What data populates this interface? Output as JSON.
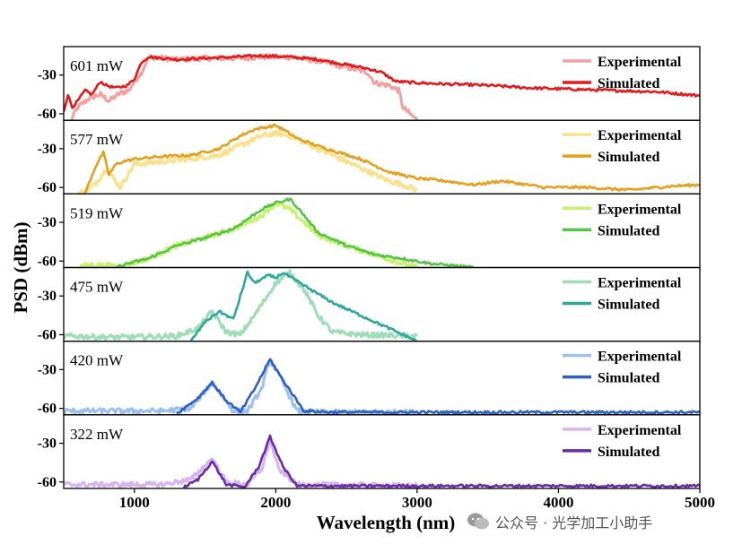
{
  "chart_data": {
    "type": "line",
    "layout": "stacked-panels",
    "xlabel": "Wavelength (nm)",
    "ylabel": "PSD (dBm)",
    "xlim": [
      500,
      5000
    ],
    "xticks": [
      1000,
      2000,
      3000,
      4000,
      5000
    ],
    "ylim": [
      -65,
      -8
    ],
    "yticks": [
      -30,
      -60
    ],
    "legend_labels": [
      "Experimental",
      "Simulated"
    ],
    "legend_position": "top-right",
    "panels": [
      {
        "label": "601 mW",
        "colors": {
          "experimental": "#f2a0a0",
          "simulated": "#e31a1c"
        },
        "series": [
          {
            "name": "Experimental",
            "x": [
              550,
              600,
              680,
              760,
              820,
              900,
              960,
              1000,
              1050,
              1100,
              1300,
              1500,
              1700,
              1900,
              2100,
              2300,
              2500,
              2650,
              2700,
              2800,
              2870,
              2900,
              3000
            ],
            "y": [
              -65,
              -55,
              -48,
              -45,
              -50,
              -44,
              -42,
              -35,
              -28,
              -16,
              -18,
              -17,
              -17,
              -16,
              -16,
              -19,
              -24,
              -28,
              -36,
              -38,
              -42,
              -55,
              -65
            ]
          },
          {
            "name": "Simulated",
            "x": [
              500,
              530,
              560,
              600,
              650,
              700,
              760,
              800,
              870,
              950,
              1000,
              1050,
              1100,
              1300,
              1500,
              1700,
              1900,
              2100,
              2300,
              2500,
              2650,
              2750,
              2850,
              3000,
              3200,
              3500,
              3800,
              4100,
              4400,
              4700,
              5000
            ],
            "y": [
              -58,
              -45,
              -55,
              -50,
              -42,
              -45,
              -35,
              -38,
              -40,
              -38,
              -33,
              -20,
              -16,
              -18,
              -17,
              -16,
              -15,
              -16,
              -18,
              -22,
              -25,
              -28,
              -35,
              -36,
              -37,
              -38,
              -40,
              -41,
              -42,
              -43,
              -46
            ]
          }
        ]
      },
      {
        "label": "577 mW",
        "colors": {
          "experimental": "#fde08a",
          "simulated": "#e6a020"
        },
        "series": [
          {
            "name": "Experimental",
            "x": [
              600,
              700,
              760,
              800,
              900,
              1000,
              1200,
              1400,
              1600,
              1800,
              1900,
              2000,
              2100,
              2200,
              2400,
              2600,
              2800,
              2900,
              3000
            ],
            "y": [
              -65,
              -60,
              -52,
              -45,
              -60,
              -42,
              -40,
              -38,
              -35,
              -25,
              -20,
              -18,
              -20,
              -25,
              -35,
              -45,
              -55,
              -58,
              -62
            ]
          },
          {
            "name": "Simulated",
            "x": [
              650,
              720,
              780,
              820,
              870,
              920,
              1000,
              1200,
              1400,
              1600,
              1750,
              1850,
              2000,
              2050,
              2150,
              2300,
              2600,
              2800,
              3000,
              3200,
              3400,
              3600,
              3900,
              4200,
              4500,
              4800,
              5000
            ],
            "y": [
              -65,
              -45,
              -33,
              -50,
              -42,
              -40,
              -38,
              -36,
              -35,
              -30,
              -20,
              -15,
              -12,
              -15,
              -22,
              -28,
              -38,
              -48,
              -53,
              -55,
              -58,
              -55,
              -60,
              -60,
              -62,
              -59,
              -58
            ]
          }
        ]
      },
      {
        "label": "519 mW",
        "colors": {
          "experimental": "#c6f26e",
          "simulated": "#55c548"
        },
        "series": [
          {
            "name": "Experimental",
            "x": [
              600,
              700,
              900,
              1100,
              1300,
              1500,
              1700,
              1900,
              2000,
              2100,
              2300,
              2500,
              2700,
              2900,
              3000
            ],
            "y": [
              -65,
              -63,
              -64,
              -58,
              -48,
              -42,
              -35,
              -25,
              -15,
              -20,
              -40,
              -48,
              -55,
              -62,
              -65
            ]
          },
          {
            "name": "Simulated",
            "x": [
              870,
              950,
              1100,
              1300,
              1500,
              1700,
              1900,
              2000,
              2100,
              2150,
              2300,
              2500,
              2700,
              2900,
              3100,
              3400
            ],
            "y": [
              -65,
              -62,
              -58,
              -48,
              -42,
              -35,
              -20,
              -15,
              -12,
              -18,
              -38,
              -48,
              -55,
              -58,
              -62,
              -65
            ]
          }
        ]
      },
      {
        "label": "475 mW",
        "colors": {
          "experimental": "#9fdcb8",
          "simulated": "#2fa89c"
        },
        "series": [
          {
            "name": "Experimental",
            "x": [
              500,
              900,
              1300,
              1450,
              1550,
              1650,
              1750,
              1850,
              2000,
              2100,
              2200,
              2300,
              2400,
              2600,
              3000
            ],
            "y": [
              -61,
              -62,
              -61,
              -55,
              -42,
              -58,
              -60,
              -45,
              -20,
              -12,
              -25,
              -45,
              -58,
              -60,
              -61
            ]
          },
          {
            "name": "Simulated",
            "x": [
              1400,
              1500,
              1600,
              1700,
              1800,
              1850,
              1950,
              2000,
              2050,
              2200,
              2400,
              2600,
              2800,
              3000
            ],
            "y": [
              -65,
              -50,
              -42,
              -48,
              -12,
              -20,
              -14,
              -16,
              -12,
              -22,
              -35,
              -45,
              -55,
              -65
            ]
          }
        ]
      },
      {
        "label": "420 mW",
        "colors": {
          "experimental": "#9dc0ee",
          "simulated": "#2f60c0"
        },
        "series": [
          {
            "name": "Experimental",
            "x": [
              500,
              1200,
              1400,
              1550,
              1700,
              1800,
              1900,
              1960,
              2050,
              2150,
              2300,
              3000
            ],
            "y": [
              -62,
              -62,
              -60,
              -40,
              -62,
              -62,
              -45,
              -22,
              -40,
              -62,
              -63,
              -63
            ]
          },
          {
            "name": "Simulated",
            "x": [
              1300,
              1450,
              1550,
              1650,
              1750,
              1850,
              1960,
              2050,
              2200,
              2400,
              3000,
              4000,
              5000
            ],
            "y": [
              -64,
              -52,
              -40,
              -54,
              -63,
              -45,
              -22,
              -38,
              -62,
              -63,
              -63,
              -63,
              -63
            ]
          }
        ]
      },
      {
        "label": "322 mW",
        "colors": {
          "experimental": "#d6b6ee",
          "simulated": "#6a2ba8"
        },
        "series": [
          {
            "name": "Experimental",
            "x": [
              500,
              1200,
              1400,
              1550,
              1650,
              1800,
              1900,
              1960,
              2020,
              2150,
              3000
            ],
            "y": [
              -62,
              -62,
              -58,
              -42,
              -60,
              -62,
              -50,
              -28,
              -50,
              -62,
              -63
            ]
          },
          {
            "name": "Simulated",
            "x": [
              1350,
              1450,
              1550,
              1650,
              1780,
              1880,
              1960,
              2050,
              2150,
              2300,
              3000,
              4000,
              5000
            ],
            "y": [
              -64,
              -58,
              -44,
              -62,
              -64,
              -48,
              -25,
              -48,
              -63,
              -63,
              -63,
              -63,
              -63
            ]
          }
        ]
      }
    ]
  },
  "watermark": {
    "icon": "wechat-icon",
    "text": "公众号 · 光学加工小助手"
  }
}
